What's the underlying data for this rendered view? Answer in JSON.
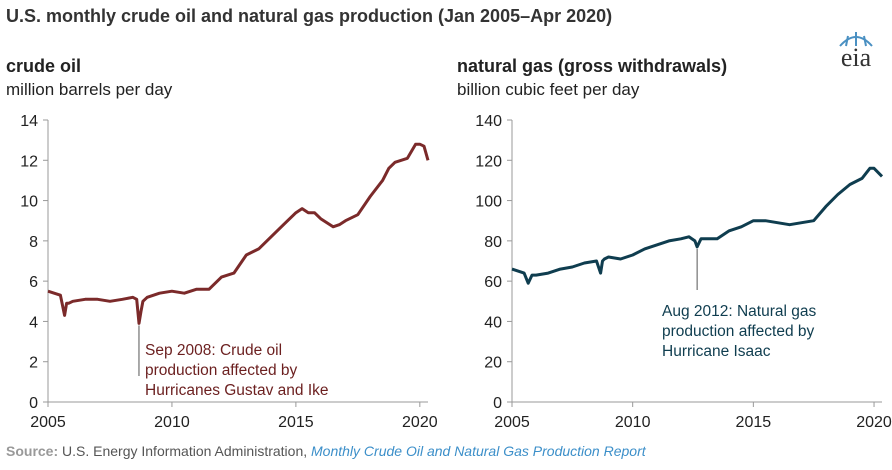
{
  "title": "U.S. monthly crude oil and natural gas production (Jan 2005–Apr 2020)",
  "logo_text": "eia",
  "source": {
    "label": "Source:",
    "text": " U.S. Energy Information Administration, ",
    "report": "Monthly Crude Oil and Natural Gas Production Report"
  },
  "colors": {
    "oil": "#7b2a2a",
    "gas": "#0f3d4f",
    "axis": "#999999"
  },
  "chart_data": [
    {
      "type": "line",
      "title": "crude oil",
      "ylabel": "million barrels per day",
      "xlim": [
        2005,
        2020.33
      ],
      "ylim": [
        0,
        14
      ],
      "yticks": [
        0,
        2,
        4,
        6,
        8,
        10,
        12,
        14
      ],
      "xticks": [
        2005,
        2010,
        2015,
        2020
      ],
      "grid": false,
      "series": [
        {
          "x": [
            2005.0,
            2005.5,
            2005.67,
            2005.75,
            2005.83,
            2006.0,
            2006.5,
            2007.0,
            2007.5,
            2008.0,
            2008.42,
            2008.58,
            2008.67,
            2008.75,
            2008.83,
            2009.0,
            2009.5,
            2010.0,
            2010.5,
            2011.0,
            2011.5,
            2012.0,
            2012.5,
            2013.0,
            2013.5,
            2014.0,
            2014.5,
            2015.0,
            2015.25,
            2015.5,
            2015.75,
            2016.0,
            2016.5,
            2016.75,
            2017.0,
            2017.5,
            2018.0,
            2018.5,
            2018.75,
            2019.0,
            2019.5,
            2019.83,
            2020.0,
            2020.17,
            2020.33
          ],
          "y": [
            5.5,
            5.3,
            4.3,
            4.9,
            4.9,
            5.0,
            5.1,
            5.1,
            5.0,
            5.1,
            5.2,
            5.1,
            3.9,
            4.5,
            5.0,
            5.2,
            5.4,
            5.5,
            5.4,
            5.6,
            5.6,
            6.2,
            6.4,
            7.3,
            7.6,
            8.2,
            8.8,
            9.4,
            9.6,
            9.4,
            9.4,
            9.1,
            8.7,
            8.8,
            9.0,
            9.3,
            10.2,
            11.0,
            11.6,
            11.9,
            12.1,
            12.8,
            12.8,
            12.7,
            12.0
          ]
        }
      ],
      "annotation": [
        "Sep 2008: Crude oil",
        "production affected by",
        "Hurricanes Gustav and Ike"
      ]
    },
    {
      "type": "line",
      "title": "natural gas (gross withdrawals)",
      "ylabel": "billion cubic feet per day",
      "xlim": [
        2005,
        2020.33
      ],
      "ylim": [
        0,
        140
      ],
      "yticks": [
        0,
        20,
        40,
        60,
        80,
        100,
        120,
        140
      ],
      "xticks": [
        2005,
        2010,
        2015,
        2020
      ],
      "grid": false,
      "series": [
        {
          "x": [
            2005.0,
            2005.5,
            2005.67,
            2005.83,
            2006.0,
            2006.5,
            2007.0,
            2007.5,
            2008.0,
            2008.5,
            2008.67,
            2008.75,
            2008.83,
            2009.0,
            2009.5,
            2010.0,
            2010.5,
            2011.0,
            2011.5,
            2012.0,
            2012.33,
            2012.58,
            2012.67,
            2012.83,
            2013.0,
            2013.5,
            2014.0,
            2014.5,
            2015.0,
            2015.5,
            2016.0,
            2016.5,
            2017.0,
            2017.5,
            2018.0,
            2018.5,
            2019.0,
            2019.5,
            2019.83,
            2020.0,
            2020.33
          ],
          "y": [
            66,
            64,
            59,
            63,
            63,
            64,
            66,
            67,
            69,
            70,
            64,
            70,
            71,
            72,
            71,
            73,
            76,
            78,
            80,
            81,
            82,
            80,
            77,
            81,
            81,
            81,
            85,
            87,
            90,
            90,
            89,
            88,
            89,
            90,
            97,
            103,
            108,
            111,
            116,
            116,
            112
          ]
        }
      ],
      "annotation": [
        "Aug 2012: Natural gas",
        "production affected by",
        "Hurricane Isaac"
      ]
    }
  ],
  "panels": {
    "oil": {
      "title": "crude oil",
      "unit": "million barrels per day"
    },
    "gas": {
      "title": "natural gas (gross withdrawals)",
      "unit": "billion cubic feet per day"
    }
  }
}
